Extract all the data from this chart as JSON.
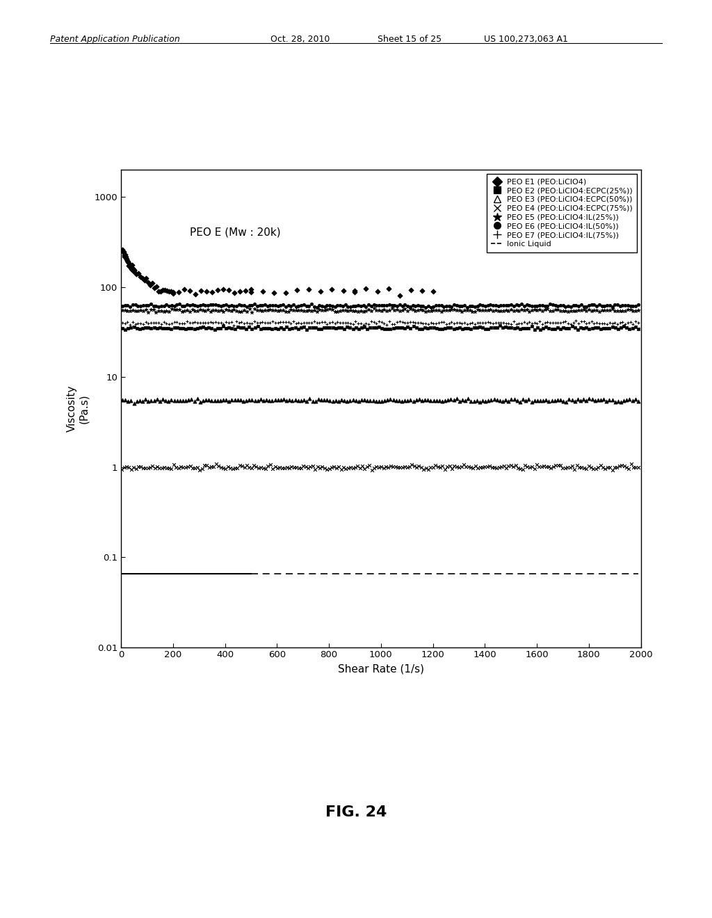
{
  "title_annotation": "PEO E (Mw : 20k)",
  "xlabel": "Shear Rate (1/s)",
  "ylabel": "Viscosity\n(Pa.s)",
  "xmin": 0,
  "xmax": 2000,
  "ymin": 0.01,
  "ymax": 2000,
  "fig_label": "FIG. 24",
  "header_left": "Patent Application Publication",
  "header_mid1": "Oct. 28, 2010",
  "header_mid2": "Sheet 15 of 25",
  "header_right": "US 100,273,063 A1",
  "E1_visc_start": 280,
  "E1_visc_end": 90,
  "E1_shear_end": 1200,
  "E2_visc": 35,
  "E3_visc": 5.5,
  "E4_visc": 1.0,
  "E5_visc": 55,
  "E6_visc": 62,
  "E7_visc": 40,
  "IL_visc": 0.065,
  "legend_labels": [
    "PEO E1 (PEO:LiClO4)",
    "PEO E2 (PEO:LiClO4:ECPC(25%))",
    "PEO E3 (PEO:LiClO4:ECPC(50%))",
    "PEO E4 (PEO:LiClO4:ECPC(75%))",
    "PEO E5 (PEO:LiClO4:IL(25%))",
    "PEO E6 (PEO:LiClO4:IL(50%))",
    "PEO E7 (PEO:LiClO4:IL(75%))",
    "Ionic Liquid"
  ]
}
